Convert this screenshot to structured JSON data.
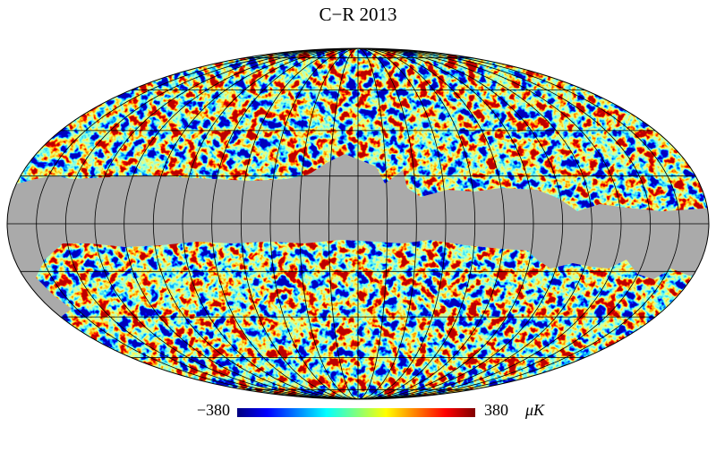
{
  "title": "C−R 2013",
  "colorbar": {
    "min": {
      "value": -380,
      "label": "−380"
    },
    "max": {
      "value": 380,
      "label": "380"
    },
    "unit": "μK"
  }
}
